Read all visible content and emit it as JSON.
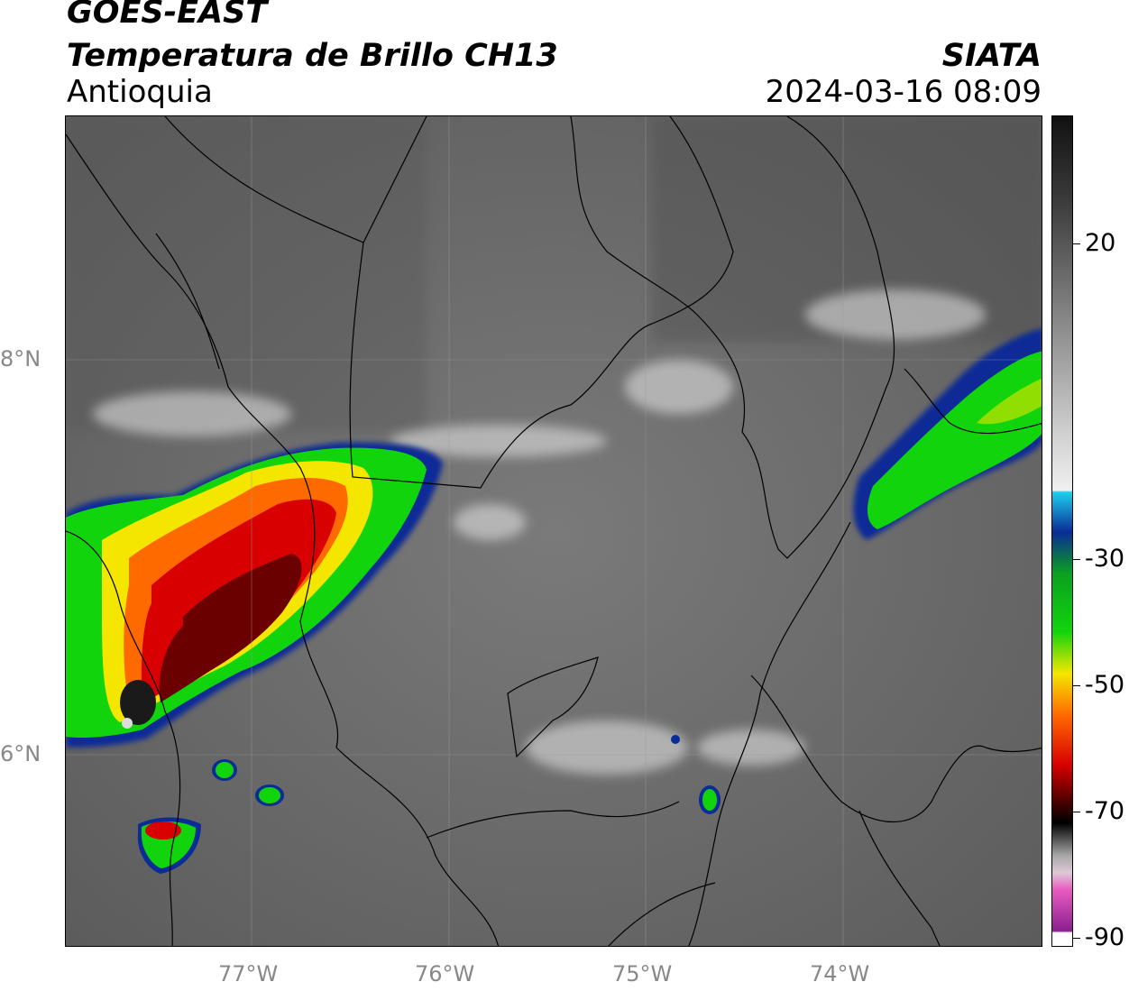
{
  "header": {
    "satellite": "GOES-EAST",
    "product": "Temperatura de Brillo CH13",
    "region": "Antioquia",
    "organization": "SIATA",
    "datetime": "2024-03-16 08:09"
  },
  "map": {
    "lat_labels": [
      "8°N",
      "6°N"
    ],
    "lon_labels": [
      "77°W",
      "76°W",
      "75°W",
      "74°W"
    ]
  },
  "colorbar": {
    "tick_labels": [
      "20",
      "-30",
      "-50",
      "-70",
      "-90"
    ],
    "colors": {
      "warm_dark": "#3a3a3a",
      "cold_gray": "#f0f0f0",
      "cyan": "#1ed0ee",
      "blue": "#0a2c96",
      "green": "#12d40c",
      "yellow": "#f5e600",
      "orange": "#ff6a00",
      "red": "#d80000",
      "dark_red": "#3a0000",
      "black": "#000000",
      "pink": "#e85cc0",
      "purple": "#8a1e90"
    }
  }
}
